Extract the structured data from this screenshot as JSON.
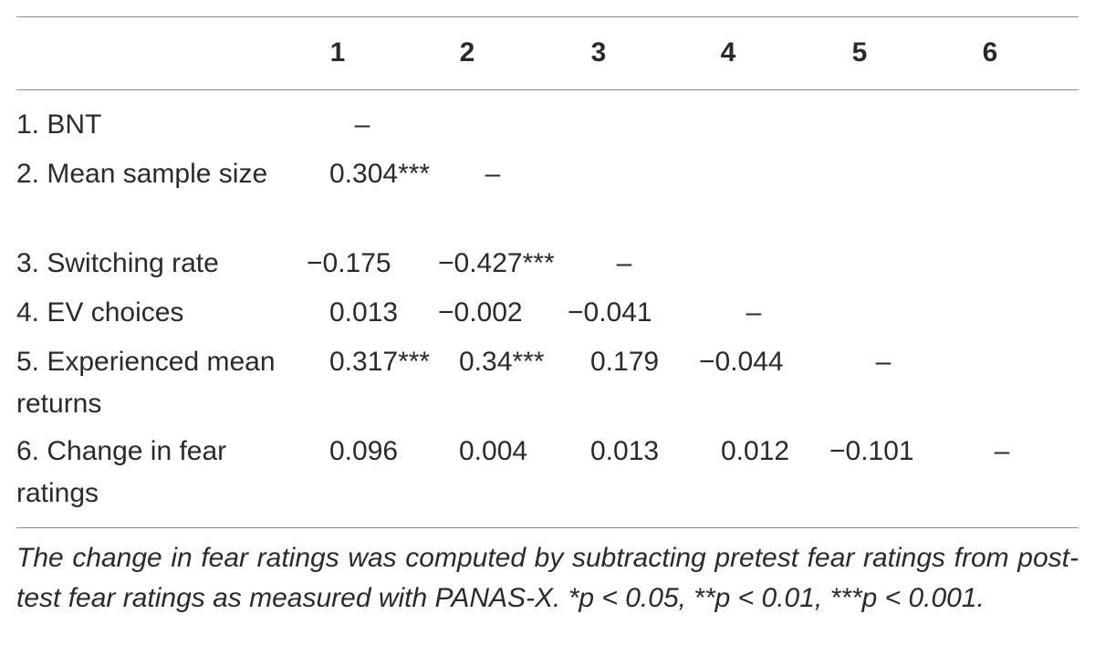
{
  "table": {
    "columns": [
      "1",
      "2",
      "3",
      "4",
      "5",
      "6"
    ],
    "rows": [
      {
        "label": "1. BNT",
        "cells": [
          "–"
        ]
      },
      {
        "label": "2. Mean sample size",
        "cells": [
          "0.304***",
          "–"
        ]
      },
      {
        "label": "3. Switching rate",
        "cells": [
          "−0.175",
          "−0.427***",
          "–"
        ]
      },
      {
        "label": "4. EV choices",
        "cells": [
          "0.013",
          "−0.002",
          "−0.041",
          "–"
        ]
      },
      {
        "label": "5. Experienced mean returns",
        "cells": [
          "0.317***",
          "0.34***",
          "0.179",
          "−0.044",
          "–"
        ]
      },
      {
        "label": "6. Change in fear ratings",
        "cells": [
          "0.096",
          "0.004",
          "0.013",
          "0.012",
          "−0.101",
          "–"
        ]
      }
    ],
    "note": "The change in fear ratings was computed by subtracting pretest fear ratings from post-test fear ratings as measured with PANAS-X. *p < 0.05, **p < 0.01, ***p < 0.001."
  }
}
